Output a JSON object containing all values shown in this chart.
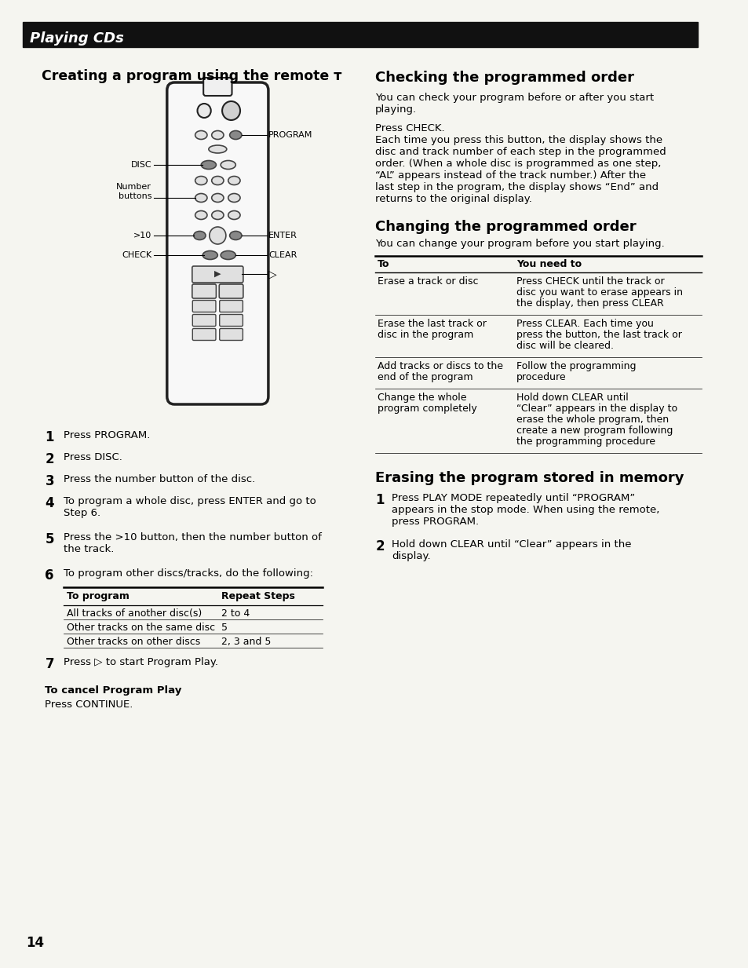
{
  "page_bg": "#f5f5f0",
  "header_bg": "#111111",
  "header_text": "Playing CDs",
  "header_text_color": "#ffffff",
  "left_col_title": "Creating a program using the remote ᴛ",
  "left_steps": [
    [
      "1",
      "Press PROGRAM."
    ],
    [
      "2",
      "Press DISC."
    ],
    [
      "3",
      "Press the number button of the disc."
    ],
    [
      "4",
      "To program a whole disc, press ENTER and go to\nStep 6."
    ],
    [
      "5",
      "Press the >10 button, then the number button of\nthe track."
    ],
    [
      "6",
      "To program other discs/tracks, do the following:"
    ],
    [
      "7",
      "Press ▷ to start Program Play."
    ]
  ],
  "table_left_header": "To program",
  "table_right_header": "Repeat Steps",
  "table_rows": [
    [
      "All tracks of another disc(s)",
      "2 to 4"
    ],
    [
      "Other tracks on the same disc",
      "5"
    ],
    [
      "Other tracks on other discs",
      "2, 3 and 5"
    ]
  ],
  "cancel_title": "To cancel Program Play",
  "cancel_text": "Press CONTINUE.",
  "right_col_title1": "Checking the programmed order",
  "right_col_body1": "You can check your program before or after you start\nplaying.\n\nPress CHECK.\nEach time you press this button, the display shows the\ndisc and track number of each step in the programmed\norder. (When a whole disc is programmed as one step,\n“AL” appears instead of the track number.) After the\nlast step in the program, the display shows “End” and\nreturns to the original display.",
  "right_col_title2": "Changing the programmed order",
  "right_col_body2_intro": "You can change your program before you start playing.",
  "right_table_header_col1": "To",
  "right_table_header_col2": "You need to",
  "right_table_rows": [
    [
      "Erase a track or disc",
      "Press CHECK until the track or\ndisc you want to erase appears in\nthe display, then press CLEAR"
    ],
    [
      "Erase the last track or\ndisc in the program",
      "Press CLEAR. Each time you\npress the button, the last track or\ndisc will be cleared."
    ],
    [
      "Add tracks or discs to the\nend of the program",
      "Follow the programming\nprocedure"
    ],
    [
      "Change the whole\nprogram completely",
      "Hold down CLEAR until\n“Clear” appears in the display to\nerase the whole program, then\ncreate a new program following\nthe programming procedure"
    ]
  ],
  "right_col_title3": "Erasing the program stored in memory",
  "right_col_steps3": [
    [
      "1",
      "Press PLAY MODE repeatedly until “PROGRAM”\nappears in the stop mode. When using the remote,\npress PROGRAM."
    ],
    [
      "2",
      "Hold down CLEAR until “Clear” appears in the\ndisplay."
    ]
  ],
  "page_number": "14",
  "remote_labels": {
    "PROGRAM": "PROGRAM",
    "DISC": "DISC",
    "Number_buttons": "Number\nbuttons",
    "more_than_10": ">10",
    "ENTER": "ENTER",
    "CLEAR": "CLEAR",
    "CHECK": "CHECK",
    "play_arrow": "▷"
  }
}
